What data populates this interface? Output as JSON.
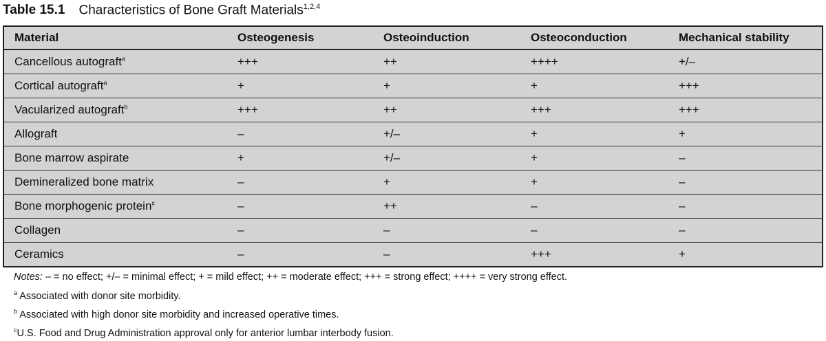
{
  "title": {
    "label": "Table 15.1",
    "text": "Characteristics of Bone Graft Materials",
    "refs": "1,2,4"
  },
  "columns": [
    "Material",
    "Osteogenesis",
    "Osteoinduction",
    "Osteoconduction",
    "Mechanical stability"
  ],
  "rows": [
    {
      "material": "Cancellous autograft",
      "sup": "a",
      "values": [
        "+++",
        "++",
        "++++",
        "+/–"
      ]
    },
    {
      "material": "Cortical autograft",
      "sup": "a",
      "values": [
        "+",
        "+",
        "+",
        "+++"
      ]
    },
    {
      "material": "Vacularized autograft",
      "sup": "b",
      "values": [
        "+++",
        "++",
        "+++",
        "+++"
      ]
    },
    {
      "material": "Allograft",
      "sup": "",
      "values": [
        "–",
        "+/–",
        "+",
        "+"
      ]
    },
    {
      "material": "Bone marrow aspirate",
      "sup": "",
      "values": [
        "+",
        "+/–",
        "+",
        "–"
      ]
    },
    {
      "material": "Demineralized bone matrix",
      "sup": "",
      "values": [
        "–",
        "+",
        "+",
        "–"
      ]
    },
    {
      "material": "Bone morphogenic protein",
      "sup": "c",
      "values": [
        "–",
        "++",
        "–",
        "–"
      ]
    },
    {
      "material": "Collagen",
      "sup": "",
      "values": [
        "–",
        "–",
        "–",
        "–"
      ]
    },
    {
      "material": "Ceramics",
      "sup": "",
      "values": [
        "–",
        "–",
        "+++",
        "+"
      ]
    }
  ],
  "notes": {
    "label": "Notes:",
    "text": " – = no effect; +/– = minimal effect; + = mild effect; ++ = moderate effect; +++ = strong effect; ++++ = very strong effect.",
    "footnotes": [
      {
        "mark": "a",
        "text": "Associated with donor site morbidity."
      },
      {
        "mark": "b",
        "text": "Associated with high donor site morbidity and increased operative times."
      },
      {
        "mark": "c",
        "text": "U.S. Food and Drug Administration approval only for anterior lumbar interbody fusion."
      }
    ]
  }
}
